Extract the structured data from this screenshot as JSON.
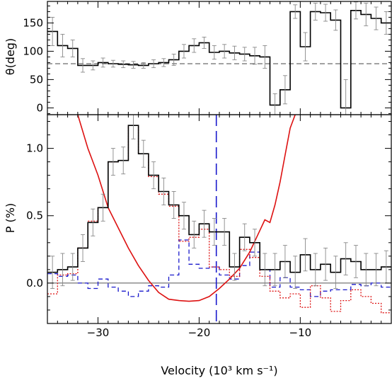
{
  "chart_data": [
    {
      "type": "line",
      "panel": "top",
      "ylabel": "θ(deg)",
      "xlim": [
        -35,
        -1
      ],
      "ylim": [
        -12,
        188
      ],
      "yticks": [
        0,
        50,
        100,
        150
      ],
      "xticks": [
        -30,
        -20,
        -10
      ],
      "reference_line": {
        "y": 78,
        "style": "dashed"
      },
      "bin_edges": [
        -35,
        -34,
        -33,
        -32,
        -31,
        -30,
        -29,
        -28,
        -27,
        -26,
        -25,
        -24,
        -23,
        -22,
        -21,
        -20,
        -19,
        -18,
        -17,
        -16,
        -15,
        -14,
        -13,
        -12,
        -11,
        -10,
        -9,
        -8,
        -7,
        -6,
        -5,
        -4,
        -3,
        -2,
        -1
      ],
      "series": [
        {
          "style": "histogram",
          "color": "#000000",
          "values": [
            135,
            110,
            105,
            75,
            75,
            80,
            78,
            77,
            76,
            75,
            78,
            80,
            85,
            100,
            110,
            115,
            98,
            100,
            97,
            95,
            92,
            90,
            5,
            32,
            170,
            108,
            170,
            168,
            155,
            0,
            172,
            165,
            158,
            150
          ],
          "errors": [
            25,
            20,
            15,
            12,
            8,
            8,
            6,
            6,
            6,
            5,
            7,
            7,
            10,
            12,
            12,
            10,
            12,
            12,
            12,
            12,
            15,
            20,
            20,
            25,
            12,
            25,
            15,
            15,
            18,
            50,
            15,
            20,
            20,
            20
          ]
        }
      ]
    },
    {
      "type": "line",
      "panel": "bottom",
      "xlabel": "Velocity (10³ km s⁻¹)",
      "ylabel": "P (%)",
      "xlim": [
        -35,
        -1
      ],
      "ylim": [
        -0.3,
        1.25
      ],
      "yticks": [
        0.0,
        0.5,
        1.0
      ],
      "yticklabels": [
        "0.0",
        "0.5",
        "1.0"
      ],
      "xticks": [
        -30,
        -20,
        -10
      ],
      "xticklabels": [
        "−30",
        "−20",
        "−10"
      ],
      "reference_lines": [
        {
          "y": 0,
          "orientation": "horizontal",
          "style": "solid"
        },
        {
          "x": -18.3,
          "orientation": "vertical",
          "style": "long-dash",
          "color": "#1a1acc"
        }
      ],
      "bin_edges": [
        -35,
        -34,
        -33,
        -32,
        -31,
        -30,
        -29,
        -28,
        -27,
        -26,
        -25,
        -24,
        -23,
        -22,
        -21,
        -20,
        -19,
        -18,
        -17,
        -16,
        -15,
        -14,
        -13,
        -12,
        -11,
        -10,
        -9,
        -8,
        -7,
        -6,
        -5,
        -4,
        -3,
        -2,
        -1
      ],
      "series": [
        {
          "style": "histogram",
          "color": "#000000",
          "values": [
            0.08,
            0.1,
            0.12,
            0.26,
            0.45,
            0.56,
            0.9,
            0.91,
            1.17,
            0.96,
            0.8,
            0.68,
            0.58,
            0.5,
            0.36,
            0.44,
            0.38,
            0.38,
            0.12,
            0.34,
            0.3,
            0.1,
            0.1,
            0.16,
            0.08,
            0.21,
            0.1,
            0.14,
            0.08,
            0.18,
            0.16,
            0.1,
            0.1,
            0.12
          ],
          "errors": [
            0.12,
            0.12,
            0.1,
            0.1,
            0.1,
            0.1,
            0.1,
            0.1,
            0.1,
            0.1,
            0.1,
            0.1,
            0.1,
            0.1,
            0.1,
            0.1,
            0.1,
            0.1,
            0.1,
            0.1,
            0.1,
            0.12,
            0.12,
            0.12,
            0.12,
            0.12,
            0.12,
            0.12,
            0.12,
            0.12,
            0.12,
            0.12,
            0.12,
            0.12
          ]
        },
        {
          "style": "histogram",
          "color": "#1a1acc",
          "dash": "dashed",
          "values": [
            0.07,
            0.05,
            0.06,
            0.0,
            -0.04,
            0.03,
            -0.03,
            -0.06,
            -0.1,
            -0.06,
            -0.02,
            -0.03,
            0.06,
            0.32,
            0.14,
            0.11,
            0.12,
            0.06,
            0.03,
            0.13,
            0.23,
            0.1,
            -0.03,
            0.04,
            -0.03,
            -0.05,
            -0.1,
            -0.06,
            -0.05,
            -0.05,
            -0.01,
            -0.02,
            0.0,
            -0.03
          ]
        },
        {
          "style": "histogram",
          "color": "#dd1111",
          "dash": "dotted",
          "values": [
            -0.08,
            0.06,
            0.07,
            0.26,
            0.46,
            0.56,
            0.9,
            0.91,
            1.17,
            0.96,
            0.79,
            0.66,
            0.57,
            0.31,
            0.34,
            0.4,
            0.12,
            0.1,
            0.05,
            0.25,
            0.19,
            0.05,
            -0.06,
            -0.11,
            -0.08,
            -0.18,
            -0.02,
            -0.11,
            -0.21,
            -0.13,
            -0.05,
            -0.1,
            -0.15,
            -0.22
          ]
        },
        {
          "style": "line",
          "color": "#dd1111",
          "x": [
            -32.0,
            -31.0,
            -30.0,
            -29.0,
            -28.0,
            -27.0,
            -26.0,
            -25.0,
            -24.0,
            -23.0,
            -22.0,
            -21.0,
            -20.0,
            -19.0,
            -18.0,
            -17.0,
            -16.0,
            -15.0,
            -14.0,
            -13.5,
            -13.0,
            -12.5,
            -12.0,
            -11.5,
            -11.0,
            -10.5
          ],
          "y": [
            1.25,
            1.0,
            0.8,
            0.56,
            0.41,
            0.26,
            0.13,
            0.02,
            -0.07,
            -0.12,
            -0.13,
            -0.135,
            -0.13,
            -0.1,
            -0.04,
            0.03,
            0.11,
            0.23,
            0.39,
            0.47,
            0.45,
            0.58,
            0.75,
            0.95,
            1.15,
            1.25
          ]
        }
      ]
    }
  ]
}
